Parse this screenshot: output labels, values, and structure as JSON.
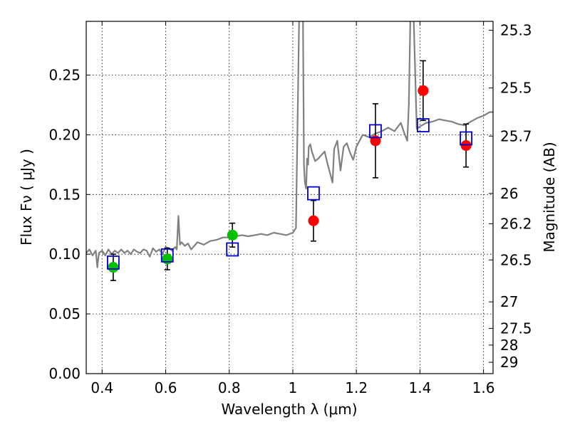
{
  "chart_data": {
    "type": "scatter",
    "xlabel": "Wavelength  λ (μm)",
    "ylabel": "Flux  Fν  ( μJy )",
    "y2label": "Magnitude (AB)",
    "xlim": [
      0.35,
      1.63
    ],
    "ylim": [
      0.0,
      0.295
    ],
    "grid": true,
    "x_ticks": [
      0.4,
      0.6,
      0.8,
      1.0,
      1.2,
      1.4,
      1.6
    ],
    "x_tick_labels": [
      "0.4",
      "0.6",
      "0.8",
      "1",
      "1.2",
      "1.4",
      "1.6"
    ],
    "y_ticks": [
      0.0,
      0.05,
      0.1,
      0.15,
      0.2,
      0.25
    ],
    "y_tick_labels": [
      "0.00",
      "0.05",
      "0.10",
      "0.15",
      "0.20",
      "0.25"
    ],
    "y2_ticks": [
      {
        "label": "25.3",
        "flux": 0.2875
      },
      {
        "label": "25.5",
        "flux": 0.2392
      },
      {
        "label": "25.7",
        "flux": 0.1989
      },
      {
        "label": "26",
        "flux": 0.1509
      },
      {
        "label": "26.2",
        "flux": 0.1255
      },
      {
        "label": "26.5",
        "flux": 0.0952
      },
      {
        "label": "27",
        "flux": 0.0601
      },
      {
        "label": "27.5",
        "flux": 0.0379
      },
      {
        "label": "28",
        "flux": 0.0239
      },
      {
        "label": "29",
        "flux": 0.0095
      }
    ],
    "series": [
      {
        "marker": "line",
        "color": "#808080",
        "x": [
          0.35,
          0.36,
          0.37,
          0.38,
          0.385,
          0.39,
          0.4,
          0.41,
          0.42,
          0.43,
          0.44,
          0.45,
          0.46,
          0.47,
          0.48,
          0.49,
          0.5,
          0.51,
          0.52,
          0.53,
          0.54,
          0.55,
          0.56,
          0.57,
          0.58,
          0.59,
          0.6,
          0.61,
          0.62,
          0.63,
          0.635,
          0.64,
          0.645,
          0.65,
          0.66,
          0.67,
          0.68,
          0.69,
          0.7,
          0.72,
          0.74,
          0.76,
          0.78,
          0.8,
          0.82,
          0.84,
          0.86,
          0.88,
          0.9,
          0.92,
          0.94,
          0.96,
          0.98,
          1.0,
          1.01,
          1.02,
          1.025,
          1.028,
          1.032,
          1.035,
          1.038,
          1.042,
          1.045,
          1.048,
          1.05,
          1.055,
          1.06,
          1.07,
          1.08,
          1.09,
          1.1,
          1.11,
          1.12,
          1.125,
          1.13,
          1.14,
          1.15,
          1.16,
          1.17,
          1.18,
          1.19,
          1.2,
          1.22,
          1.24,
          1.26,
          1.28,
          1.3,
          1.32,
          1.34,
          1.35,
          1.36,
          1.365,
          1.37,
          1.375,
          1.38,
          1.39,
          1.4,
          1.42,
          1.44,
          1.46,
          1.48,
          1.5,
          1.52,
          1.54,
          1.56,
          1.58,
          1.6,
          1.62,
          1.63
        ],
        "y": [
          0.101,
          0.104,
          0.099,
          0.103,
          0.089,
          0.101,
          0.103,
          0.099,
          0.104,
          0.1,
          0.103,
          0.101,
          0.104,
          0.101,
          0.103,
          0.1,
          0.104,
          0.102,
          0.101,
          0.104,
          0.103,
          0.098,
          0.105,
          0.102,
          0.104,
          0.1,
          0.106,
          0.105,
          0.103,
          0.106,
          0.104,
          0.132,
          0.108,
          0.11,
          0.107,
          0.109,
          0.104,
          0.107,
          0.11,
          0.108,
          0.111,
          0.112,
          0.114,
          0.114,
          0.115,
          0.116,
          0.115,
          0.116,
          0.117,
          0.116,
          0.118,
          0.117,
          0.116,
          0.118,
          0.122,
          0.3,
          0.3,
          0.3,
          0.3,
          0.175,
          0.16,
          0.155,
          0.18,
          0.175,
          0.19,
          0.192,
          0.186,
          0.178,
          0.18,
          0.183,
          0.186,
          0.175,
          0.165,
          0.16,
          0.188,
          0.195,
          0.17,
          0.19,
          0.193,
          0.185,
          0.179,
          0.19,
          0.2,
          0.198,
          0.201,
          0.203,
          0.206,
          0.203,
          0.21,
          0.202,
          0.195,
          0.225,
          0.3,
          0.3,
          0.3,
          0.205,
          0.207,
          0.21,
          0.211,
          0.213,
          0.212,
          0.211,
          0.209,
          0.208,
          0.211,
          0.214,
          0.216,
          0.219,
          0.219
        ]
      },
      {
        "marker": "circle",
        "color": "#00c000",
        "x": [
          0.435,
          0.605,
          0.81
        ],
        "y": [
          0.089,
          0.096,
          0.116
        ],
        "err": [
          0.011,
          0.009,
          0.01
        ]
      },
      {
        "marker": "circle",
        "color": "#ff0000",
        "x": [
          1.065,
          1.26,
          1.41,
          1.545
        ],
        "y": [
          0.128,
          0.195,
          0.237,
          0.191
        ],
        "err": [
          0.017,
          0.031,
          0.025,
          0.018
        ]
      },
      {
        "marker": "open-square",
        "color": "#0000cc",
        "x": [
          0.435,
          0.605,
          0.81,
          1.065,
          1.26,
          1.41,
          1.545
        ],
        "y": [
          0.093,
          0.099,
          0.104,
          0.151,
          0.203,
          0.208,
          0.197
        ]
      }
    ]
  }
}
